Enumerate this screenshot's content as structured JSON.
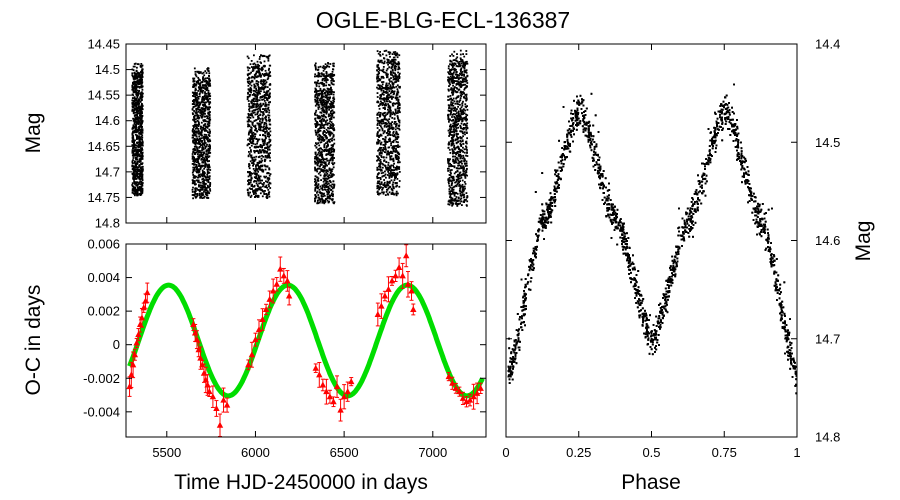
{
  "title": "OGLE-BLG-ECL-136387",
  "chart_data": [
    {
      "id": "lightcurve-time",
      "type": "scatter",
      "ylabel": "Mag",
      "xlim": [
        5270,
        7300
      ],
      "ylim": [
        14.8,
        14.45
      ],
      "y_inverted": true,
      "yticks": [
        "14.45",
        "14.5",
        "14.55",
        "14.6",
        "14.65",
        "14.7",
        "14.75",
        "14.8"
      ],
      "ytick_values": [
        14.45,
        14.5,
        14.55,
        14.6,
        14.65,
        14.7,
        14.75,
        14.8
      ],
      "seasons": [
        {
          "x_start": 5300,
          "x_end": 5360,
          "mag_bright": 14.505,
          "mag_faint": 14.745
        },
        {
          "x_start": 5640,
          "x_end": 5740,
          "mag_bright": 14.515,
          "mag_faint": 14.75
        },
        {
          "x_start": 5950,
          "x_end": 6080,
          "mag_bright": 14.49,
          "mag_faint": 14.75
        },
        {
          "x_start": 6330,
          "x_end": 6440,
          "mag_bright": 14.505,
          "mag_faint": 14.76
        },
        {
          "x_start": 6680,
          "x_end": 6810,
          "mag_bright": 14.48,
          "mag_faint": 14.745
        },
        {
          "x_start": 7080,
          "x_end": 7190,
          "mag_bright": 14.48,
          "mag_faint": 14.765
        }
      ],
      "color": "#000000"
    },
    {
      "id": "o-c",
      "type": "scatter",
      "xlabel": "Time HJD-2450000 in days",
      "ylabel": "O-C in days",
      "xlim": [
        5270,
        7300
      ],
      "ylim": [
        -0.0055,
        0.006
      ],
      "xticks": [
        "5500",
        "6000",
        "6500",
        "7000"
      ],
      "xtick_values": [
        5500,
        6000,
        6500,
        7000
      ],
      "yticks": [
        "-0.004",
        "-0.002",
        "0",
        "0.002",
        "0.004",
        "0.006"
      ],
      "ytick_values": [
        -0.004,
        -0.002,
        0,
        0.002,
        0.004,
        0.006
      ],
      "points_color": "#ff0000",
      "fit": {
        "model": "sine",
        "offset": 0.00025,
        "amplitude": 0.0033,
        "period_days": 673,
        "first_max_time": 5510,
        "color": "#00dd00"
      },
      "points": [
        [
          5290,
          -0.0025
        ],
        [
          5300,
          -0.0018
        ],
        [
          5310,
          -0.0012
        ],
        [
          5320,
          -0.0006
        ],
        [
          5330,
          0.0001
        ],
        [
          5340,
          0.0006
        ],
        [
          5350,
          0.0012
        ],
        [
          5360,
          0.0016
        ],
        [
          5370,
          0.0022
        ],
        [
          5380,
          0.0026
        ],
        [
          5390,
          0.0031
        ],
        [
          5650,
          0.0012
        ],
        [
          5660,
          0.0007
        ],
        [
          5670,
          0.0003
        ],
        [
          5680,
          -0.0003
        ],
        [
          5690,
          -0.0008
        ],
        [
          5700,
          -0.0012
        ],
        [
          5710,
          -0.0017
        ],
        [
          5720,
          -0.0021
        ],
        [
          5730,
          -0.0024
        ],
        [
          5740,
          -0.0028
        ],
        [
          5760,
          -0.0031
        ],
        [
          5780,
          -0.0038
        ],
        [
          5800,
          -0.0048
        ],
        [
          5820,
          -0.0033
        ],
        [
          5840,
          -0.0036
        ],
        [
          5960,
          -0.0012
        ],
        [
          5980,
          -0.0006
        ],
        [
          6000,
          0.0003
        ],
        [
          6020,
          0.0009
        ],
        [
          6040,
          0.0015
        ],
        [
          6060,
          0.0021
        ],
        [
          6080,
          0.0027
        ],
        [
          6100,
          0.0032
        ],
        [
          6120,
          0.0036
        ],
        [
          6140,
          0.0045
        ],
        [
          6160,
          0.0041
        ],
        [
          6180,
          0.0038
        ],
        [
          6190,
          0.0029
        ],
        [
          6340,
          -0.0014
        ],
        [
          6360,
          -0.0018
        ],
        [
          6380,
          -0.0024
        ],
        [
          6400,
          -0.0028
        ],
        [
          6420,
          -0.0031
        ],
        [
          6440,
          -0.0034
        ],
        [
          6460,
          -0.0025
        ],
        [
          6480,
          -0.0039
        ],
        [
          6500,
          -0.0031
        ],
        [
          6520,
          -0.0028
        ],
        [
          6540,
          -0.0022
        ],
        [
          6690,
          0.0018
        ],
        [
          6710,
          0.0023
        ],
        [
          6730,
          0.0029
        ],
        [
          6750,
          0.0033
        ],
        [
          6770,
          0.0038
        ],
        [
          6790,
          0.0041
        ],
        [
          6810,
          0.0046
        ],
        [
          6830,
          0.0041
        ],
        [
          6850,
          0.0053
        ],
        [
          6860,
          0.0036
        ],
        [
          6880,
          0.0032
        ],
        [
          6890,
          0.0021
        ],
        [
          7090,
          -0.0019
        ],
        [
          7110,
          -0.0023
        ],
        [
          7130,
          -0.0026
        ],
        [
          7150,
          -0.0028
        ],
        [
          7170,
          -0.0032
        ],
        [
          7190,
          -0.0034
        ],
        [
          7210,
          -0.0033
        ],
        [
          7230,
          -0.0031
        ],
        [
          7250,
          -0.0029
        ],
        [
          7270,
          -0.0026
        ]
      ]
    },
    {
      "id": "phased-lightcurve",
      "type": "scatter",
      "xlabel": "Phase",
      "ylabel": "Mag",
      "xlim": [
        0,
        1
      ],
      "ylim": [
        14.8,
        14.4
      ],
      "y_inverted": true,
      "xticks": [
        "0",
        "0.25",
        "0.5",
        "0.75",
        "1"
      ],
      "xtick_values": [
        0,
        0.25,
        0.5,
        0.75,
        1
      ],
      "yticks": [
        "14.4",
        "14.5",
        "14.6",
        "14.7",
        "14.8"
      ],
      "ytick_values": [
        14.4,
        14.5,
        14.6,
        14.7,
        14.8
      ],
      "model": {
        "phase": [
          0,
          0.125,
          0.25,
          0.375,
          0.5,
          0.625,
          0.75,
          0.875,
          1
        ],
        "mag": [
          14.74,
          14.58,
          14.465,
          14.58,
          14.7,
          14.58,
          14.465,
          14.58,
          14.74
        ]
      },
      "scatter_half_width_mag": 0.025,
      "color": "#000000"
    }
  ]
}
